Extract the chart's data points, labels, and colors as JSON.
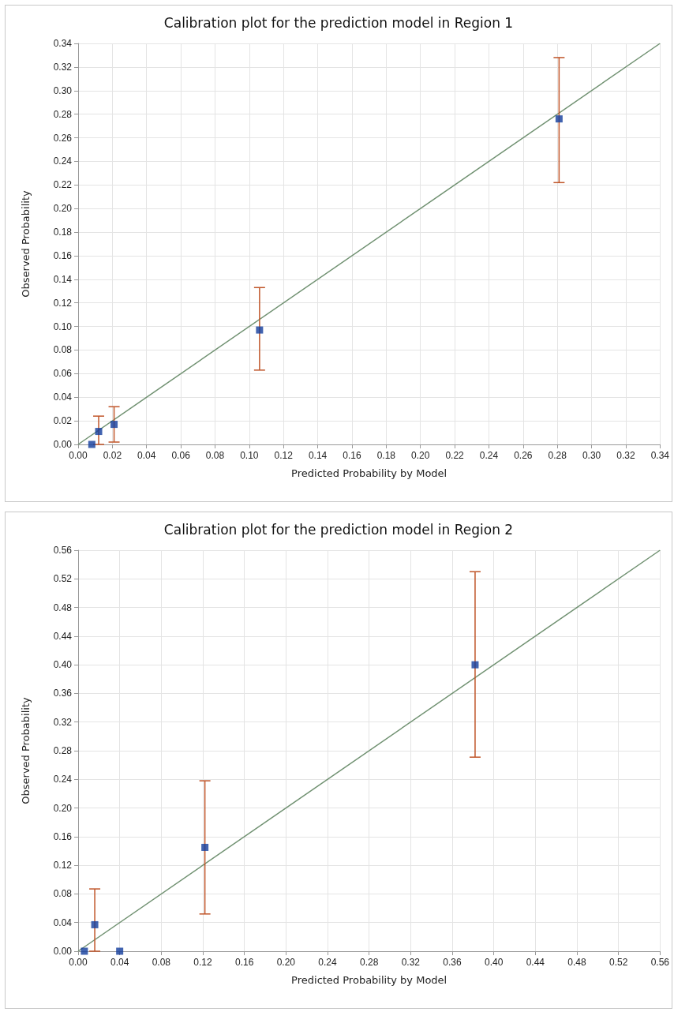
{
  "chart_data": [
    {
      "type": "scatter",
      "title": "Calibration plot for the prediction model in Region 1",
      "xlabel": "Predicted Probability by Model",
      "ylabel": "Observed Probability",
      "xlim": [
        0,
        0.34
      ],
      "ylim": [
        0,
        0.34
      ],
      "xticks": [
        {
          "value": 0,
          "label": "0.00"
        },
        {
          "value": 0.02,
          "label": "0.02"
        },
        {
          "value": 0.04,
          "label": "0.04"
        },
        {
          "value": 0.06,
          "label": "0.06"
        },
        {
          "value": 0.08,
          "label": "0.08"
        },
        {
          "value": 0.1,
          "label": "0.10"
        },
        {
          "value": 0.12,
          "label": "0.12"
        },
        {
          "value": 0.14,
          "label": "0.14"
        },
        {
          "value": 0.16,
          "label": "0.16"
        },
        {
          "value": 0.18,
          "label": "0.18"
        },
        {
          "value": 0.2,
          "label": "0.20"
        },
        {
          "value": 0.22,
          "label": "0.22"
        },
        {
          "value": 0.24,
          "label": "0.24"
        },
        {
          "value": 0.26,
          "label": "0.26"
        },
        {
          "value": 0.28,
          "label": "0.28"
        },
        {
          "value": 0.3,
          "label": "0.30"
        },
        {
          "value": 0.32,
          "label": "0.32"
        },
        {
          "value": 0.34,
          "label": "0.34"
        }
      ],
      "yticks": [
        {
          "value": 0,
          "label": "0.00"
        },
        {
          "value": 0.02,
          "label": "0.02"
        },
        {
          "value": 0.04,
          "label": "0.04"
        },
        {
          "value": 0.06,
          "label": "0.06"
        },
        {
          "value": 0.08,
          "label": "0.08"
        },
        {
          "value": 0.1,
          "label": "0.10"
        },
        {
          "value": 0.12,
          "label": "0.12"
        },
        {
          "value": 0.14,
          "label": "0.14"
        },
        {
          "value": 0.16,
          "label": "0.16"
        },
        {
          "value": 0.18,
          "label": "0.18"
        },
        {
          "value": 0.2,
          "label": "0.20"
        },
        {
          "value": 0.22,
          "label": "0.22"
        },
        {
          "value": 0.24,
          "label": "0.24"
        },
        {
          "value": 0.26,
          "label": "0.26"
        },
        {
          "value": 0.28,
          "label": "0.28"
        },
        {
          "value": 0.3,
          "label": "0.30"
        },
        {
          "value": 0.32,
          "label": "0.32"
        },
        {
          "value": 0.34,
          "label": "0.34"
        }
      ],
      "grid": true,
      "marker": "square",
      "series": [
        {
          "type": "line",
          "marker": "none",
          "color": "#6f9070",
          "x": [
            0,
            0.34
          ],
          "values": [
            0,
            0.34
          ]
        },
        {
          "color": "#123c9c",
          "x": [
            0.008,
            0.012,
            0.021,
            0.106,
            0.281
          ],
          "values": [
            0,
            0.011,
            0.017,
            0.097,
            0.276
          ],
          "errors": [
            null,
            [
              0,
              0.024
            ],
            [
              0.002,
              0.032
            ],
            [
              0.063,
              0.133
            ],
            [
              0.222,
              0.328
            ]
          ]
        }
      ]
    },
    {
      "type": "scatter",
      "title": "Calibration plot for the prediction model in Region 2",
      "xlabel": "Predicted Probability by Model",
      "ylabel": "Observed Probability",
      "xlim": [
        0,
        0.56
      ],
      "ylim": [
        0,
        0.56
      ],
      "xticks": [
        {
          "value": 0,
          "label": "0.00"
        },
        {
          "value": 0.04,
          "label": "0.04"
        },
        {
          "value": 0.08,
          "label": "0.08"
        },
        {
          "value": 0.12,
          "label": "0.12"
        },
        {
          "value": 0.16,
          "label": "0.16"
        },
        {
          "value": 0.2,
          "label": "0.20"
        },
        {
          "value": 0.24,
          "label": "0.24"
        },
        {
          "value": 0.28,
          "label": "0.28"
        },
        {
          "value": 0.32,
          "label": "0.32"
        },
        {
          "value": 0.36,
          "label": "0.36"
        },
        {
          "value": 0.4,
          "label": "0.40"
        },
        {
          "value": 0.44,
          "label": "0.44"
        },
        {
          "value": 0.48,
          "label": "0.48"
        },
        {
          "value": 0.52,
          "label": "0.52"
        },
        {
          "value": 0.56,
          "label": "0.56"
        }
      ],
      "yticks": [
        {
          "value": 0,
          "label": "0.00"
        },
        {
          "value": 0.04,
          "label": "0.04"
        },
        {
          "value": 0.08,
          "label": "0.08"
        },
        {
          "value": 0.12,
          "label": "0.12"
        },
        {
          "value": 0.16,
          "label": "0.16"
        },
        {
          "value": 0.2,
          "label": "0.20"
        },
        {
          "value": 0.24,
          "label": "0.24"
        },
        {
          "value": 0.28,
          "label": "0.28"
        },
        {
          "value": 0.32,
          "label": "0.32"
        },
        {
          "value": 0.36,
          "label": "0.36"
        },
        {
          "value": 0.4,
          "label": "0.40"
        },
        {
          "value": 0.44,
          "label": "0.44"
        },
        {
          "value": 0.48,
          "label": "0.48"
        },
        {
          "value": 0.52,
          "label": "0.52"
        },
        {
          "value": 0.56,
          "label": "0.56"
        }
      ],
      "grid": true,
      "marker": "square",
      "series": [
        {
          "type": "line",
          "marker": "none",
          "color": "#6f9070",
          "x": [
            0,
            0.56
          ],
          "values": [
            0,
            0.56
          ]
        },
        {
          "color": "#123c9c",
          "x": [
            0.006,
            0.016,
            0.04,
            0.122,
            0.382
          ],
          "values": [
            0,
            0.037,
            0,
            0.145,
            0.4
          ],
          "errors": [
            null,
            [
              0,
              0.087
            ],
            null,
            [
              0.052,
              0.238
            ],
            [
              0.271,
              0.53
            ]
          ]
        }
      ]
    }
  ]
}
